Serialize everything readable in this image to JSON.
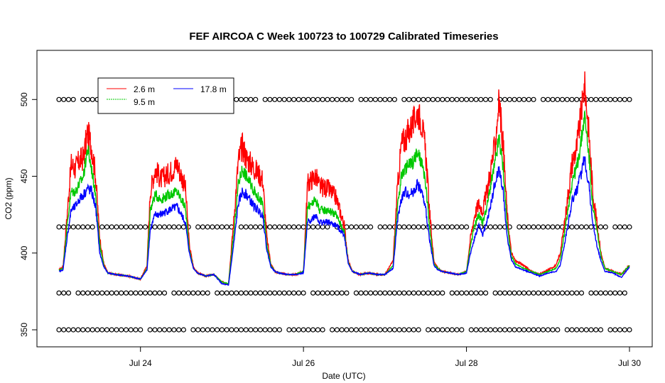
{
  "chart_data": {
    "type": "line",
    "title": "FEF AIRCOA C  Week 100723 to 100729  Calibrated Timeseries",
    "xlabel": "Date (UTC)",
    "ylabel": "CO2 (ppm)",
    "xlim": [
      23.0,
      30.0
    ],
    "ylim": [
      344,
      526
    ],
    "x_unit": "day of July 2010",
    "x_ticks": [
      {
        "value": 24,
        "label": "Jul 24"
      },
      {
        "value": 26,
        "label": "Jul 26"
      },
      {
        "value": 28,
        "label": "Jul 28"
      },
      {
        "value": 30,
        "label": "Jul 30"
      }
    ],
    "y_ticks": [
      {
        "value": 350,
        "label": "350"
      },
      {
        "value": 400,
        "label": "400"
      },
      {
        "value": 450,
        "label": "450"
      },
      {
        "value": 500,
        "label": "500"
      }
    ],
    "legend": {
      "position": "top-left",
      "entries": [
        {
          "label": "2.6 m",
          "color": "#ff0000"
        },
        {
          "label": "17.8 m",
          "color": "#0000ff"
        },
        {
          "label": "9.5 m",
          "color": "#00c800"
        }
      ]
    },
    "series": [
      {
        "name": "2.6 m",
        "color": "#ff0000",
        "x": [
          23.0,
          23.05,
          23.1,
          23.15,
          23.2,
          23.25,
          23.3,
          23.35,
          23.4,
          23.45,
          23.5,
          23.55,
          23.6,
          23.7,
          23.85,
          24.0,
          24.08,
          24.12,
          24.18,
          24.25,
          24.35,
          24.45,
          24.55,
          24.6,
          24.65,
          24.7,
          24.8,
          24.9,
          25.0,
          25.08,
          25.15,
          25.2,
          25.25,
          25.3,
          25.4,
          25.5,
          25.55,
          25.6,
          25.65,
          25.7,
          25.8,
          25.9,
          26.0,
          26.05,
          26.1,
          26.15,
          26.2,
          26.3,
          26.4,
          26.5,
          26.55,
          26.6,
          26.65,
          26.7,
          26.8,
          26.9,
          27.0,
          27.1,
          27.15,
          27.2,
          27.25,
          27.3,
          27.35,
          27.4,
          27.45,
          27.5,
          27.55,
          27.6,
          27.65,
          27.7,
          27.8,
          27.9,
          28.0,
          28.05,
          28.1,
          28.15,
          28.2,
          28.25,
          28.3,
          28.35,
          28.4,
          28.45,
          28.5,
          28.55,
          28.6,
          28.7,
          28.8,
          28.9,
          29.0,
          29.1,
          29.15,
          29.2,
          29.25,
          29.3,
          29.35,
          29.4,
          29.45,
          29.5,
          29.55,
          29.6,
          29.65,
          29.7,
          29.8,
          29.9,
          30.0
        ],
        "values": [
          389,
          391,
          425,
          458,
          455,
          460,
          462,
          478,
          470,
          450,
          410,
          393,
          387,
          386,
          385,
          383,
          392,
          440,
          455,
          448,
          452,
          458,
          443,
          405,
          391,
          387,
          385,
          386,
          381,
          380,
          425,
          460,
          470,
          462,
          455,
          448,
          410,
          393,
          388,
          387,
          386,
          386,
          388,
          445,
          448,
          450,
          443,
          442,
          436,
          418,
          395,
          388,
          387,
          386,
          387,
          386,
          386,
          395,
          440,
          470,
          475,
          480,
          485,
          492,
          485,
          465,
          425,
          395,
          390,
          388,
          387,
          386,
          388,
          410,
          425,
          432,
          428,
          440,
          455,
          470,
          500,
          470,
          425,
          400,
          395,
          392,
          388,
          386,
          389,
          392,
          400,
          418,
          440,
          460,
          468,
          488,
          510,
          480,
          440,
          420,
          400,
          390,
          388,
          386,
          392
        ]
      },
      {
        "name": "9.5 m",
        "color": "#00c800",
        "x": [
          23.0,
          23.05,
          23.1,
          23.15,
          23.2,
          23.25,
          23.3,
          23.35,
          23.4,
          23.45,
          23.5,
          23.55,
          23.6,
          23.7,
          23.85,
          24.0,
          24.08,
          24.12,
          24.18,
          24.25,
          24.35,
          24.45,
          24.55,
          24.6,
          24.65,
          24.7,
          24.8,
          24.9,
          25.0,
          25.08,
          25.15,
          25.2,
          25.25,
          25.3,
          25.4,
          25.5,
          25.55,
          25.6,
          25.65,
          25.7,
          25.8,
          25.9,
          26.0,
          26.05,
          26.1,
          26.15,
          26.2,
          26.3,
          26.4,
          26.5,
          26.55,
          26.6,
          26.65,
          26.7,
          26.8,
          26.9,
          27.0,
          27.1,
          27.15,
          27.2,
          27.25,
          27.3,
          27.35,
          27.4,
          27.45,
          27.5,
          27.55,
          27.6,
          27.65,
          27.7,
          27.8,
          27.9,
          28.0,
          28.05,
          28.1,
          28.15,
          28.2,
          28.25,
          28.3,
          28.35,
          28.4,
          28.45,
          28.5,
          28.55,
          28.6,
          28.7,
          28.8,
          28.9,
          29.0,
          29.1,
          29.15,
          29.2,
          29.25,
          29.3,
          29.35,
          29.4,
          29.45,
          29.5,
          29.55,
          29.6,
          29.65,
          29.7,
          29.8,
          29.9,
          30.0
        ],
        "values": [
          389,
          390,
          418,
          440,
          440,
          445,
          450,
          468,
          455,
          438,
          405,
          392,
          387,
          386,
          385,
          383,
          390,
          428,
          438,
          435,
          438,
          440,
          430,
          402,
          390,
          387,
          385,
          386,
          381,
          380,
          415,
          445,
          455,
          450,
          440,
          432,
          405,
          392,
          388,
          387,
          386,
          386,
          388,
          430,
          432,
          435,
          428,
          428,
          425,
          414,
          394,
          388,
          387,
          386,
          387,
          386,
          386,
          392,
          428,
          450,
          455,
          458,
          460,
          465,
          458,
          445,
          415,
          393,
          390,
          388,
          387,
          386,
          388,
          405,
          418,
          425,
          420,
          430,
          445,
          458,
          475,
          455,
          418,
          398,
          393,
          390,
          388,
          386,
          388,
          390,
          396,
          412,
          430,
          448,
          455,
          470,
          490,
          465,
          430,
          415,
          398,
          390,
          388,
          386,
          392
        ]
      },
      {
        "name": "17.8 m",
        "color": "#0000ff",
        "x": [
          23.0,
          23.05,
          23.1,
          23.15,
          23.2,
          23.25,
          23.3,
          23.35,
          23.4,
          23.45,
          23.5,
          23.55,
          23.6,
          23.7,
          23.85,
          24.0,
          24.08,
          24.12,
          24.18,
          24.25,
          24.35,
          24.45,
          24.55,
          24.6,
          24.65,
          24.7,
          24.8,
          24.9,
          25.0,
          25.08,
          25.15,
          25.2,
          25.25,
          25.3,
          25.4,
          25.5,
          25.55,
          25.6,
          25.65,
          25.7,
          25.8,
          25.9,
          26.0,
          26.05,
          26.1,
          26.15,
          26.2,
          26.3,
          26.4,
          26.5,
          26.55,
          26.6,
          26.65,
          26.7,
          26.8,
          26.9,
          27.0,
          27.1,
          27.15,
          27.2,
          27.25,
          27.3,
          27.35,
          27.4,
          27.45,
          27.5,
          27.55,
          27.6,
          27.65,
          27.7,
          27.8,
          27.9,
          28.0,
          28.05,
          28.1,
          28.15,
          28.2,
          28.25,
          28.3,
          28.35,
          28.4,
          28.45,
          28.5,
          28.55,
          28.6,
          28.7,
          28.8,
          28.9,
          29.0,
          29.1,
          29.15,
          29.2,
          29.25,
          29.3,
          29.35,
          29.4,
          29.45,
          29.5,
          29.55,
          29.6,
          29.65,
          29.7,
          29.8,
          29.9,
          30.0
        ],
        "values": [
          388,
          389,
          410,
          428,
          430,
          435,
          438,
          442,
          440,
          430,
          400,
          391,
          387,
          386,
          385,
          383,
          389,
          415,
          425,
          425,
          428,
          430,
          420,
          400,
          390,
          387,
          385,
          386,
          380,
          379,
          408,
          432,
          440,
          438,
          430,
          425,
          402,
          391,
          388,
          387,
          386,
          386,
          387,
          420,
          422,
          425,
          420,
          420,
          418,
          412,
          393,
          388,
          387,
          386,
          387,
          386,
          386,
          390,
          420,
          435,
          440,
          438,
          440,
          445,
          440,
          428,
          408,
          392,
          389,
          388,
          387,
          386,
          387,
          400,
          410,
          418,
          412,
          420,
          432,
          445,
          455,
          440,
          410,
          396,
          391,
          389,
          387,
          385,
          387,
          388,
          392,
          405,
          420,
          435,
          440,
          450,
          462,
          445,
          420,
          405,
          395,
          388,
          387,
          384,
          391
        ]
      }
    ],
    "flag_point_rows": [
      500,
      417,
      374,
      350
    ]
  }
}
